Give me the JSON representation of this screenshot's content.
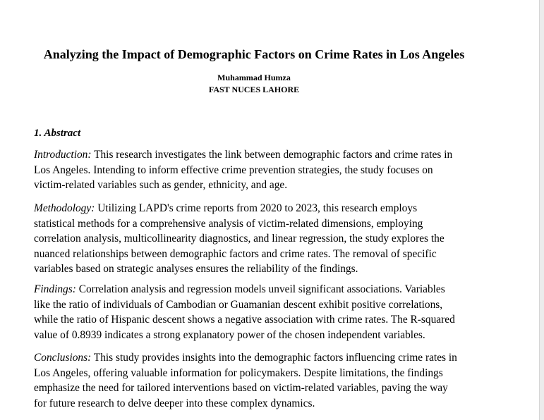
{
  "paper": {
    "title": "Analyzing the Impact of Demographic Factors on Crime Rates in Los Angeles",
    "author": "Muhammad Humza",
    "affiliation": "FAST NUCES LAHORE",
    "section_heading": "1. Abstract",
    "paragraphs": [
      {
        "lead": "Introduction:",
        "lines": [
          " This research investigates the link between demographic factors and crime rates in",
          "Los Angeles. Intending to inform effective crime prevention strategies, the study focuses on",
          "victim-related variables such as gender, ethnicity, and age."
        ]
      },
      {
        "lead": "Methodology:",
        "lines": [
          " Utilizing LAPD's crime reports from 2020 to 2023, this research employs",
          "statistical methods for a comprehensive analysis of victim-related dimensions, employing",
          "correlation analysis, multicollinearity diagnostics, and linear regression, the study explores the",
          "nuanced relationships between demographic factors and crime rates. The removal of specific",
          "variables based on strategic analyses ensures the reliability of the findings."
        ]
      },
      {
        "lead": "Findings:",
        "lines": [
          " Correlation analysis and regression models unveil significant associations. Variables",
          "like the ratio of individuals of Cambodian or Guamanian descent exhibit positive correlations,",
          "while the ratio of Hispanic descent shows a negative association with crime rates. The R-squared",
          "value of 0.8939 indicates a strong explanatory power of the chosen independent variables."
        ]
      },
      {
        "lead": "Conclusions:",
        "lines": [
          " This study provides insights into the demographic factors influencing crime rates in",
          "Los Angeles, offering valuable information for policymakers. Despite limitations, the findings",
          "emphasize the need for tailored interventions based on victim-related variables, paving the way",
          "for future research to delve deeper into these complex dynamics."
        ]
      }
    ]
  }
}
